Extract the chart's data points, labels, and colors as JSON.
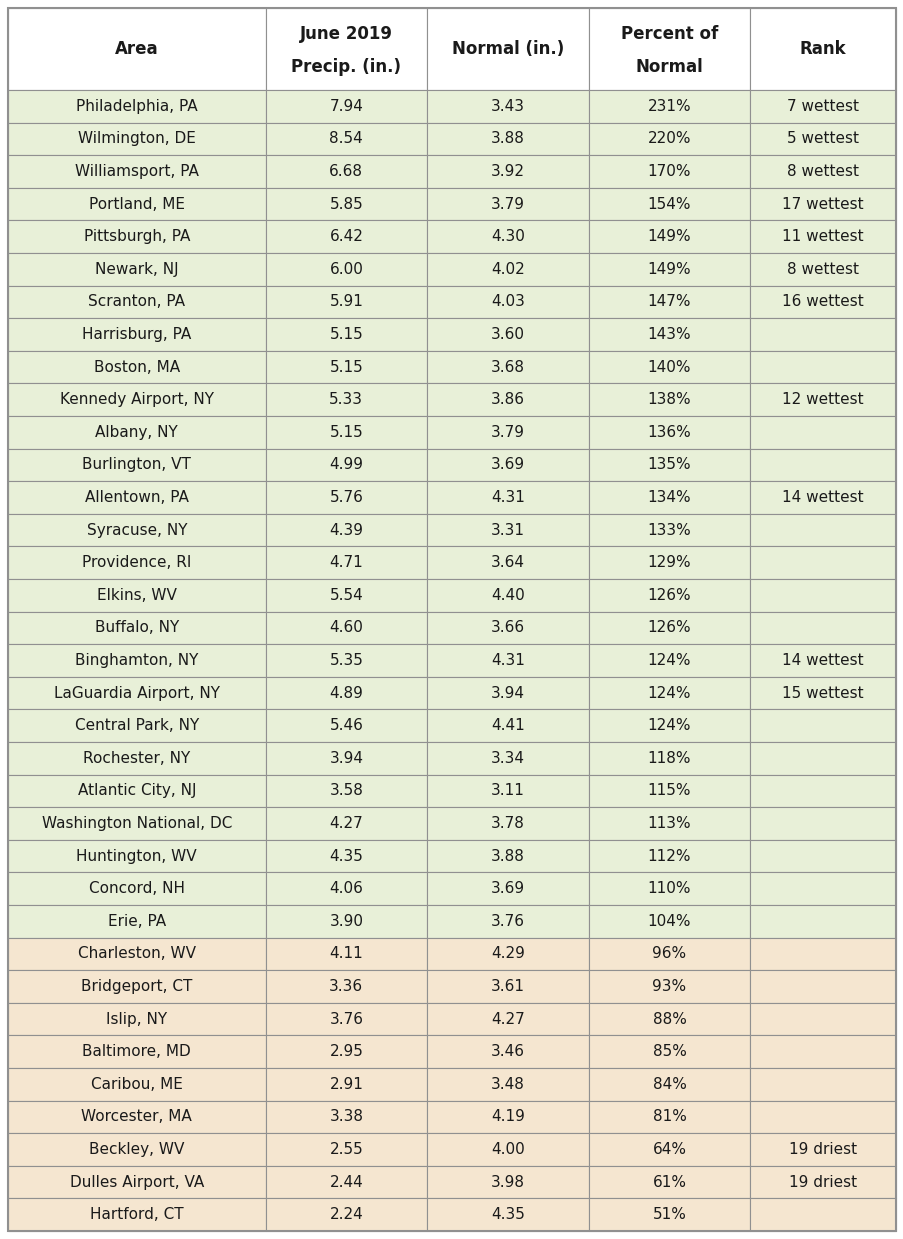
{
  "col_headers_line1": [
    "",
    "June 2019",
    "",
    "Percent of",
    ""
  ],
  "col_headers_line2": [
    "Area",
    "Precip. (in.)",
    "Normal (in.)",
    "Normal",
    "Rank"
  ],
  "rows": [
    [
      "Philadelphia, PA",
      "7.94",
      "3.43",
      "231%",
      "7 wettest"
    ],
    [
      "Wilmington, DE",
      "8.54",
      "3.88",
      "220%",
      "5 wettest"
    ],
    [
      "Williamsport, PA",
      "6.68",
      "3.92",
      "170%",
      "8 wettest"
    ],
    [
      "Portland, ME",
      "5.85",
      "3.79",
      "154%",
      "17 wettest"
    ],
    [
      "Pittsburgh, PA",
      "6.42",
      "4.30",
      "149%",
      "11 wettest"
    ],
    [
      "Newark, NJ",
      "6.00",
      "4.02",
      "149%",
      "8 wettest"
    ],
    [
      "Scranton, PA",
      "5.91",
      "4.03",
      "147%",
      "16 wettest"
    ],
    [
      "Harrisburg, PA",
      "5.15",
      "3.60",
      "143%",
      ""
    ],
    [
      "Boston, MA",
      "5.15",
      "3.68",
      "140%",
      ""
    ],
    [
      "Kennedy Airport, NY",
      "5.33",
      "3.86",
      "138%",
      "12 wettest"
    ],
    [
      "Albany, NY",
      "5.15",
      "3.79",
      "136%",
      ""
    ],
    [
      "Burlington, VT",
      "4.99",
      "3.69",
      "135%",
      ""
    ],
    [
      "Allentown, PA",
      "5.76",
      "4.31",
      "134%",
      "14 wettest"
    ],
    [
      "Syracuse, NY",
      "4.39",
      "3.31",
      "133%",
      ""
    ],
    [
      "Providence, RI",
      "4.71",
      "3.64",
      "129%",
      ""
    ],
    [
      "Elkins, WV",
      "5.54",
      "4.40",
      "126%",
      ""
    ],
    [
      "Buffalo, NY",
      "4.60",
      "3.66",
      "126%",
      ""
    ],
    [
      "Binghamton, NY",
      "5.35",
      "4.31",
      "124%",
      "14 wettest"
    ],
    [
      "LaGuardia Airport, NY",
      "4.89",
      "3.94",
      "124%",
      "15 wettest"
    ],
    [
      "Central Park, NY",
      "5.46",
      "4.41",
      "124%",
      ""
    ],
    [
      "Rochester, NY",
      "3.94",
      "3.34",
      "118%",
      ""
    ],
    [
      "Atlantic City, NJ",
      "3.58",
      "3.11",
      "115%",
      ""
    ],
    [
      "Washington National, DC",
      "4.27",
      "3.78",
      "113%",
      ""
    ],
    [
      "Huntington, WV",
      "4.35",
      "3.88",
      "112%",
      ""
    ],
    [
      "Concord, NH",
      "4.06",
      "3.69",
      "110%",
      ""
    ],
    [
      "Erie, PA",
      "3.90",
      "3.76",
      "104%",
      ""
    ],
    [
      "Charleston, WV",
      "4.11",
      "4.29",
      "96%",
      ""
    ],
    [
      "Bridgeport, CT",
      "3.36",
      "3.61",
      "93%",
      ""
    ],
    [
      "Islip, NY",
      "3.76",
      "4.27",
      "88%",
      ""
    ],
    [
      "Baltimore, MD",
      "2.95",
      "3.46",
      "85%",
      ""
    ],
    [
      "Caribou, ME",
      "2.91",
      "3.48",
      "84%",
      ""
    ],
    [
      "Worcester, MA",
      "3.38",
      "4.19",
      "81%",
      ""
    ],
    [
      "Beckley, WV",
      "2.55",
      "4.00",
      "64%",
      "19 driest"
    ],
    [
      "Dulles Airport, VA",
      "2.44",
      "3.98",
      "61%",
      "19 driest"
    ],
    [
      "Hartford, CT",
      "2.24",
      "4.35",
      "51%",
      ""
    ]
  ],
  "green_color": "#e8f0d8",
  "peach_color": "#f5e6d0",
  "border_color": "#909090",
  "text_color": "#1a1a1a",
  "font_size": 11.0,
  "header_font_size": 12.0,
  "col_props": [
    0.29,
    0.182,
    0.182,
    0.182,
    0.164
  ],
  "fig_width": 9.04,
  "fig_height": 12.39
}
